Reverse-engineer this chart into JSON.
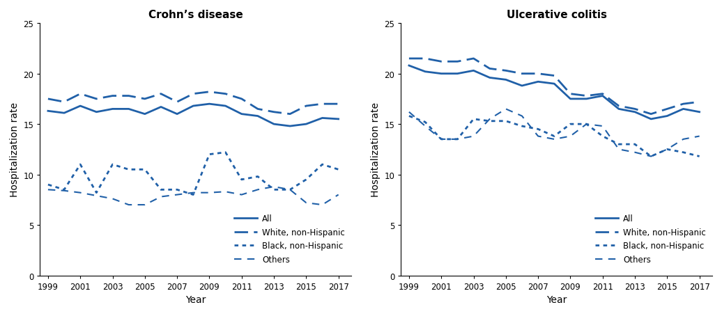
{
  "years": [
    1999,
    2000,
    2001,
    2002,
    2003,
    2004,
    2005,
    2006,
    2007,
    2008,
    2009,
    2010,
    2011,
    2012,
    2013,
    2014,
    2015,
    2016,
    2017
  ],
  "crohn": {
    "title": "Crohn’s disease",
    "all": [
      16.3,
      16.1,
      16.8,
      16.2,
      16.5,
      16.5,
      16.0,
      16.7,
      16.0,
      16.8,
      17.0,
      16.8,
      16.0,
      15.8,
      15.0,
      14.8,
      15.0,
      15.6,
      15.5
    ],
    "white": [
      17.5,
      17.2,
      18.0,
      17.5,
      17.8,
      17.8,
      17.5,
      18.0,
      17.2,
      18.0,
      18.2,
      18.0,
      17.5,
      16.5,
      16.2,
      16.0,
      16.8,
      17.0,
      17.0
    ],
    "black": [
      9.0,
      8.5,
      11.0,
      8.2,
      11.0,
      10.5,
      10.5,
      8.5,
      8.5,
      8.0,
      12.0,
      12.2,
      9.5,
      9.8,
      8.5,
      8.5,
      9.5,
      11.0,
      10.5
    ],
    "others": [
      8.5,
      8.4,
      8.2,
      7.9,
      7.6,
      7.0,
      7.0,
      7.8,
      8.0,
      8.2,
      8.2,
      8.3,
      8.0,
      8.5,
      8.8,
      8.5,
      7.2,
      7.0,
      8.0
    ]
  },
  "uc": {
    "title": "Ulcerative colitis",
    "all": [
      20.8,
      20.2,
      20.0,
      20.0,
      20.3,
      19.6,
      19.4,
      18.8,
      19.2,
      19.0,
      17.5,
      17.5,
      17.8,
      16.5,
      16.2,
      15.5,
      15.8,
      16.5,
      16.2
    ],
    "white": [
      21.5,
      21.5,
      21.2,
      21.2,
      21.5,
      20.5,
      20.3,
      20.0,
      20.0,
      19.8,
      18.0,
      17.8,
      18.0,
      16.8,
      16.5,
      16.0,
      16.5,
      17.0,
      17.2
    ],
    "black": [
      15.8,
      15.2,
      13.5,
      13.5,
      15.5,
      15.3,
      15.3,
      14.8,
      14.5,
      13.8,
      15.0,
      15.0,
      13.8,
      13.0,
      13.0,
      11.8,
      12.5,
      12.2,
      11.8
    ],
    "others": [
      16.2,
      14.8,
      13.5,
      13.5,
      13.8,
      15.5,
      16.5,
      15.8,
      13.8,
      13.5,
      13.8,
      15.0,
      14.8,
      12.5,
      12.2,
      11.8,
      12.5,
      13.5,
      13.8
    ]
  },
  "line_color": "#2060a8",
  "ylim": [
    0,
    25
  ],
  "yticks": [
    0,
    5,
    10,
    15,
    20,
    25
  ],
  "xticks": [
    1999,
    2001,
    2003,
    2005,
    2007,
    2009,
    2011,
    2013,
    2015,
    2017
  ],
  "ylabel": "Hospitalization rate",
  "xlabel": "Year",
  "legend_labels": [
    "All",
    "White, non-Hispanic",
    "Black, non-Hispanic",
    "Others"
  ]
}
